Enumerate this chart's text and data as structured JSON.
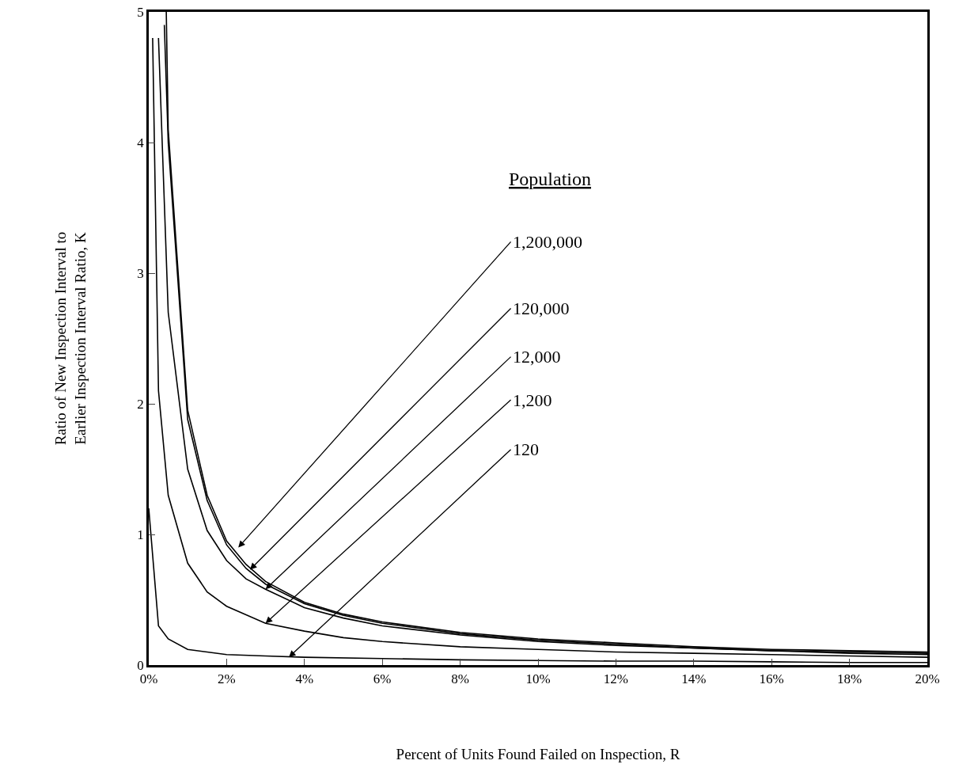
{
  "chart_data": {
    "type": "line",
    "xlabel": "Percent of Units Found Failed on Inspection, R",
    "ylabel": "Ratio of New Inspection Interval to\nEarlier Inspection Interval Ratio, K",
    "xlim": [
      0,
      20
    ],
    "ylim": [
      0,
      5
    ],
    "xticks": [
      {
        "value": 0,
        "label": "0%"
      },
      {
        "value": 2,
        "label": "2%"
      },
      {
        "value": 4,
        "label": "4%"
      },
      {
        "value": 6,
        "label": "6%"
      },
      {
        "value": 8,
        "label": "8%"
      },
      {
        "value": 10,
        "label": "10%"
      },
      {
        "value": 12,
        "label": "12%"
      },
      {
        "value": 14,
        "label": "14%"
      },
      {
        "value": 16,
        "label": "16%"
      },
      {
        "value": 18,
        "label": "18%"
      },
      {
        "value": 20,
        "label": "20%"
      }
    ],
    "yticks": [
      0,
      1,
      2,
      3,
      4,
      5
    ],
    "grid": false,
    "marker": "none",
    "line_style": "solid",
    "series": [
      {
        "color": "#000000",
        "x": [
          0.45,
          0.5,
          1,
          1.5,
          2,
          2.5,
          3,
          4,
          5,
          6,
          8,
          10,
          12,
          14,
          16,
          18,
          20
        ],
        "values": [
          5,
          4.1,
          1.95,
          1.3,
          0.95,
          0.77,
          0.64,
          0.48,
          0.39,
          0.33,
          0.25,
          0.2,
          0.17,
          0.14,
          0.12,
          0.11,
          0.1
        ]
      },
      {
        "color": "#000000",
        "x": [
          0.4,
          0.5,
          1,
          1.5,
          2,
          2.5,
          3,
          4,
          5,
          6,
          8,
          10,
          12,
          14,
          16,
          18,
          20
        ],
        "values": [
          4.9,
          4.0,
          1.88,
          1.26,
          0.92,
          0.74,
          0.62,
          0.47,
          0.38,
          0.32,
          0.24,
          0.19,
          0.16,
          0.13,
          0.11,
          0.09,
          0.08
        ]
      },
      {
        "color": "#000000",
        "x": [
          0.25,
          0.5,
          1,
          1.5,
          2,
          2.5,
          3,
          4,
          5,
          6,
          8,
          10,
          12,
          14,
          16,
          18,
          20
        ],
        "values": [
          4.8,
          2.7,
          1.5,
          1.03,
          0.8,
          0.66,
          0.58,
          0.44,
          0.36,
          0.3,
          0.23,
          0.18,
          0.15,
          0.13,
          0.11,
          0.1,
          0.09
        ]
      },
      {
        "color": "#000000",
        "x": [
          0.1,
          0.25,
          0.5,
          1,
          1.5,
          2,
          3,
          4,
          5,
          6,
          8,
          10,
          12,
          14,
          16,
          18,
          20
        ],
        "values": [
          4.8,
          2.1,
          1.3,
          0.78,
          0.56,
          0.45,
          0.32,
          0.26,
          0.21,
          0.18,
          0.14,
          0.12,
          0.1,
          0.09,
          0.08,
          0.07,
          0.06
        ]
      },
      {
        "color": "#000000",
        "x": [
          0,
          0.25,
          0.5,
          1,
          1.5,
          2,
          3,
          4,
          6,
          8,
          10,
          12,
          14,
          16,
          18,
          20
        ],
        "values": [
          1.2,
          0.3,
          0.2,
          0.12,
          0.1,
          0.08,
          0.07,
          0.06,
          0.05,
          0.04,
          0.035,
          0.03,
          0.03,
          0.025,
          0.02,
          0.02
        ]
      }
    ],
    "annotations": [
      "Population",
      {
        "text": "1,200,000",
        "x": 2.3,
        "y": 0.9
      },
      {
        "text": "120,000",
        "x": 2.6,
        "y": 0.73
      },
      {
        "text": "12,000",
        "x": 3,
        "y": 0.58
      },
      {
        "text": "1,200",
        "x": 3,
        "y": 0.32
      },
      {
        "text": "120",
        "x": 3.6,
        "y": 0.06
      }
    ]
  }
}
